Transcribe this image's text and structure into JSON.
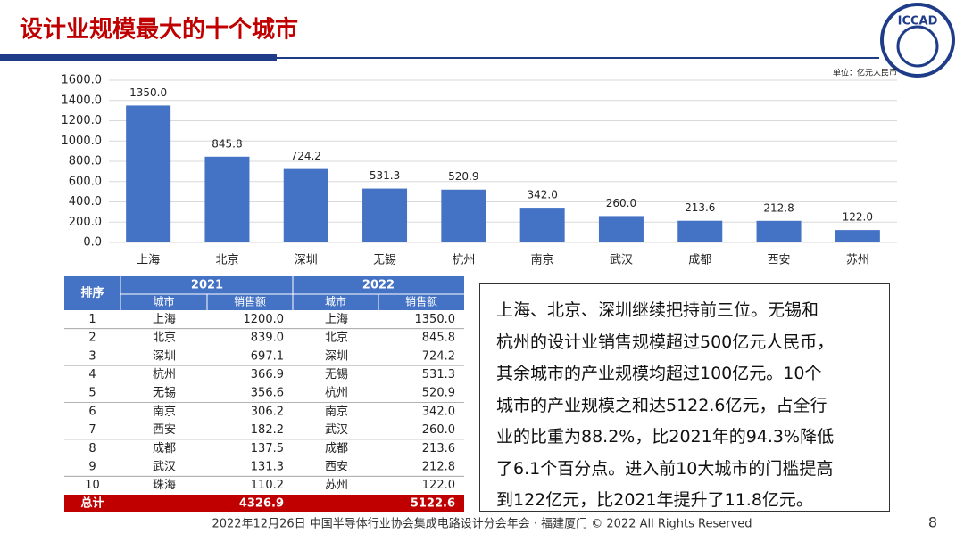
{
  "header": {
    "title": "设计业规模最大的十个城市",
    "logo": "ICCAD"
  },
  "chart_data": {
    "type": "bar",
    "unit": "单位：亿元人民币",
    "categories": [
      "上海",
      "北京",
      "深圳",
      "无锡",
      "杭州",
      "南京",
      "武汉",
      "成都",
      "西安",
      "苏州"
    ],
    "values": [
      1350.0,
      845.8,
      724.2,
      531.3,
      520.9,
      342.0,
      260.0,
      213.6,
      212.8,
      122.0
    ],
    "value_labels": [
      "1350.0",
      "845.8",
      "724.2",
      "531.3",
      "520.9",
      "342.0",
      "260.0",
      "213.6",
      "212.8",
      "122.0"
    ],
    "color": "#4472c4",
    "ylim": [
      0,
      1600
    ],
    "yticks": [
      {
        "value": 0,
        "label": "0.0"
      },
      {
        "value": 200,
        "label": "200.0"
      },
      {
        "value": 400,
        "label": "400.0"
      },
      {
        "value": 600,
        "label": "600.0"
      },
      {
        "value": 800,
        "label": "800.0"
      },
      {
        "value": 1000,
        "label": "1000.0"
      },
      {
        "value": 1200,
        "label": "1200.0"
      },
      {
        "value": 1400,
        "label": "1400.0"
      },
      {
        "value": 1600,
        "label": "1600.0"
      }
    ],
    "grid": true
  },
  "table": {
    "rank_header": "排序",
    "years": [
      "2021",
      "2022"
    ],
    "columns": [
      "城市",
      "销售额",
      "城市",
      "销售额"
    ],
    "rows": [
      [
        "1",
        "上海",
        "1200.0",
        "上海",
        "1350.0"
      ],
      [
        "2",
        "北京",
        "839.0",
        "北京",
        "845.8"
      ],
      [
        "3",
        "深圳",
        "697.1",
        "深圳",
        "724.2"
      ],
      [
        "4",
        "杭州",
        "366.9",
        "无锡",
        "531.3"
      ],
      [
        "5",
        "无锡",
        "356.6",
        "杭州",
        "520.9"
      ],
      [
        "6",
        "南京",
        "306.2",
        "南京",
        "342.0"
      ],
      [
        "7",
        "西安",
        "182.2",
        "武汉",
        "260.0"
      ],
      [
        "8",
        "成都",
        "137.5",
        "成都",
        "213.6"
      ],
      [
        "9",
        "武汉",
        "131.3",
        "西安",
        "212.8"
      ],
      [
        "10",
        "珠海",
        "110.2",
        "苏州",
        "122.0"
      ]
    ],
    "total": {
      "label": "总计",
      "sales_2021": "4326.9",
      "sales_2022": "5122.6"
    }
  },
  "text": {
    "lines": [
      "上海、北京、深圳继续把持前三位。无锡和",
      "杭州的设计业销售规模超过500亿元人民币，",
      "其余城市的产业规模均超过100亿元。10个",
      "城市的产业规模之和达5122.6亿元，占全行",
      "业的比重为88.2%，比2021年的94.3%降低",
      "了6.1个百分点。进入前10大城市的门槛提高",
      "到122亿元，比2021年提升了11.8亿元。"
    ]
  },
  "footer": {
    "text": "2022年12月26日 中国半导体行业协会集成电路设计分会年会 · 福建厦门 © 2022 All Rights Reserved",
    "page": "8"
  }
}
